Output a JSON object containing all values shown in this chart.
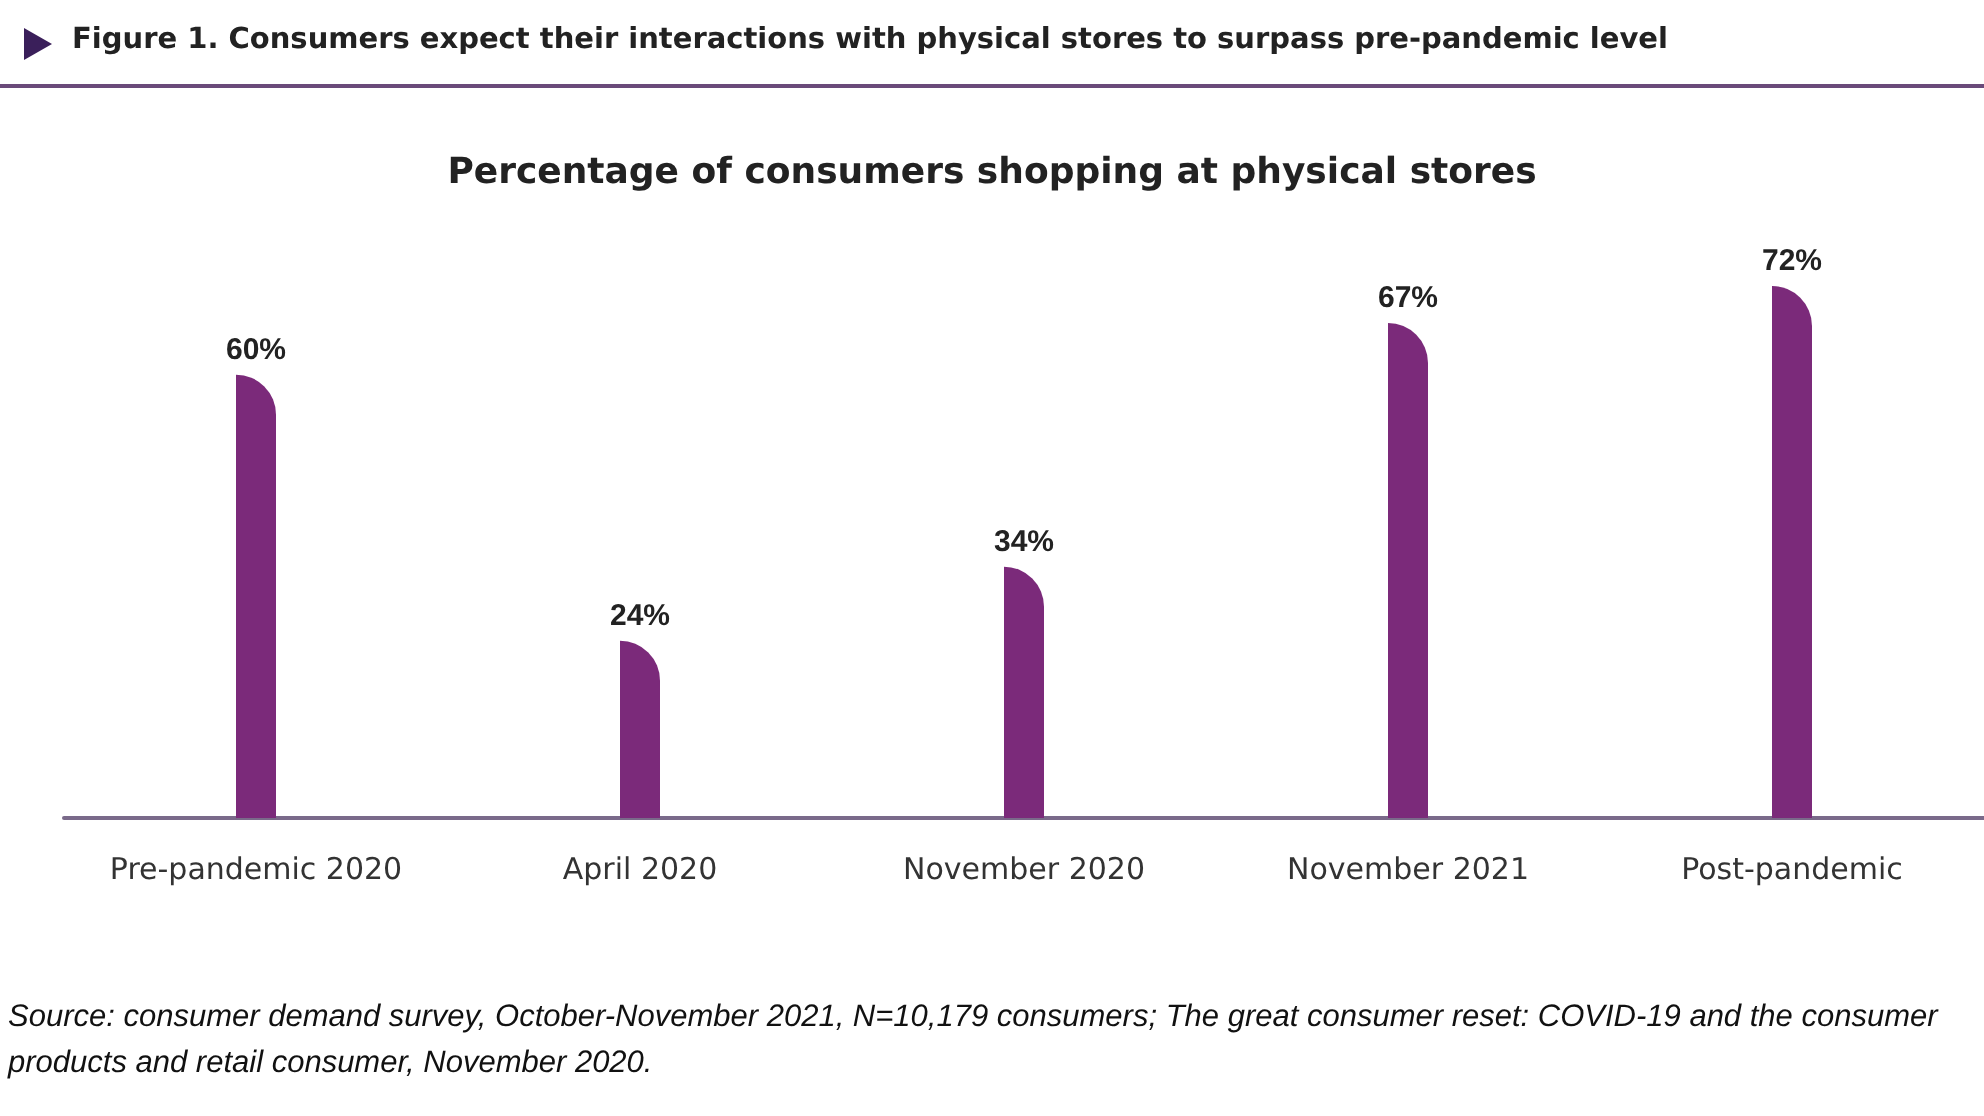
{
  "chart_data": {
    "type": "bar",
    "title": "Figure 1. Consumers expect their interactions with physical stores to surpass pre-pandemic level",
    "subtitle": "Percentage of consumers shopping at physical stores",
    "categories": [
      "Pre-pandemic 2020",
      "April 2020",
      "November 2020",
      "November 2021",
      "Post-pandemic"
    ],
    "values": [
      60,
      24,
      34,
      67,
      72
    ],
    "value_labels": [
      "60%",
      "24%",
      "34%",
      "67%",
      "72%"
    ],
    "color": "#7b2a7a",
    "annotations": [
      "Source: consumer demand survey, October-November 2021, N=10,179 consumers; The great consumer reset: COVID-19 and the consumer products and retail consumer, November 2020."
    ]
  }
}
